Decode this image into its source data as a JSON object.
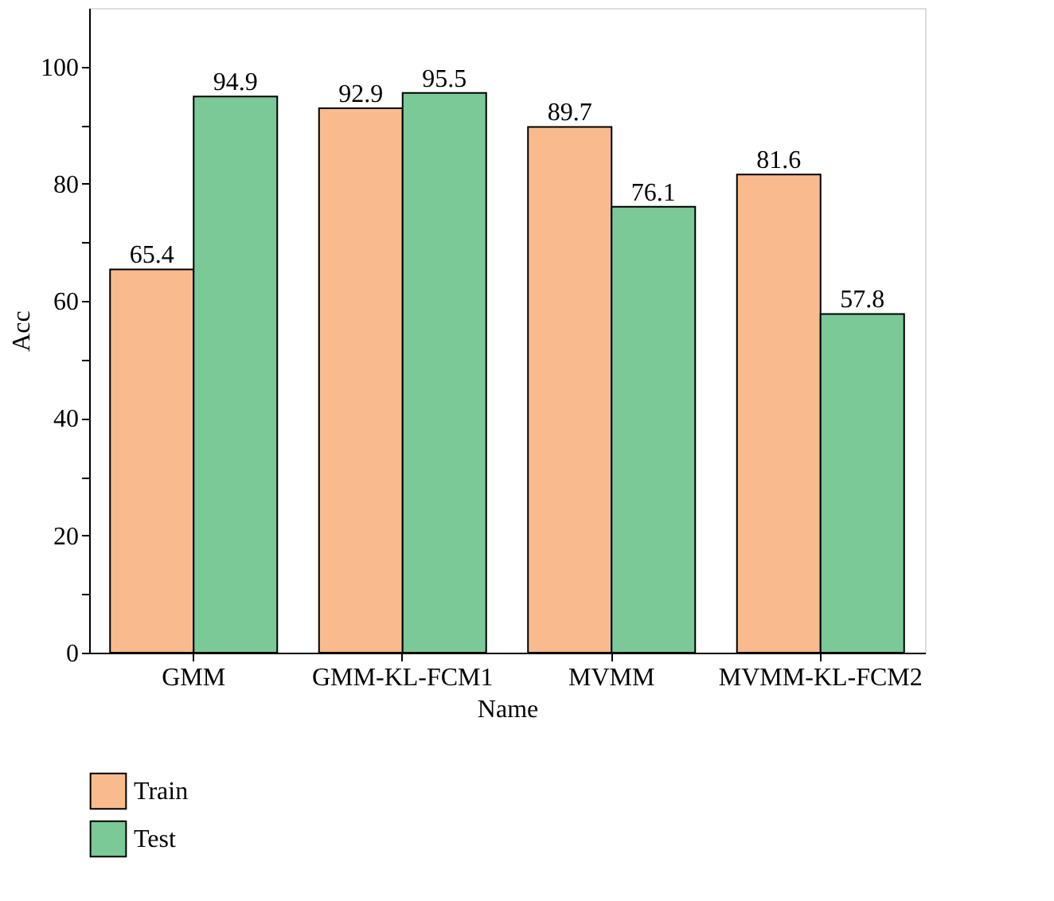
{
  "chart_data": {
    "type": "bar",
    "xlabel": "Name",
    "ylabel": "Acc",
    "categories": [
      "GMM",
      "GMM-KL-FCM1",
      "MVMM",
      "MVMM-KL-FCM2"
    ],
    "series": [
      {
        "name": "Train",
        "color": "#f9bb8d",
        "values": [
          65.4,
          92.9,
          89.7,
          81.6
        ]
      },
      {
        "name": "Test",
        "color": "#7ac996",
        "values": [
          94.9,
          95.5,
          76.1,
          57.8
        ]
      }
    ],
    "ylim": [
      0,
      110
    ],
    "yticks": [
      0,
      {
        "value": 10,
        "label": null
      },
      20,
      {
        "value": 30,
        "label": null
      },
      40,
      {
        "value": 50,
        "label": null
      },
      60,
      {
        "value": 70,
        "label": null
      },
      80,
      {
        "value": 90,
        "label": null
      },
      100
    ],
    "data_labels": true,
    "grid": false,
    "legend": "bottom left"
  }
}
